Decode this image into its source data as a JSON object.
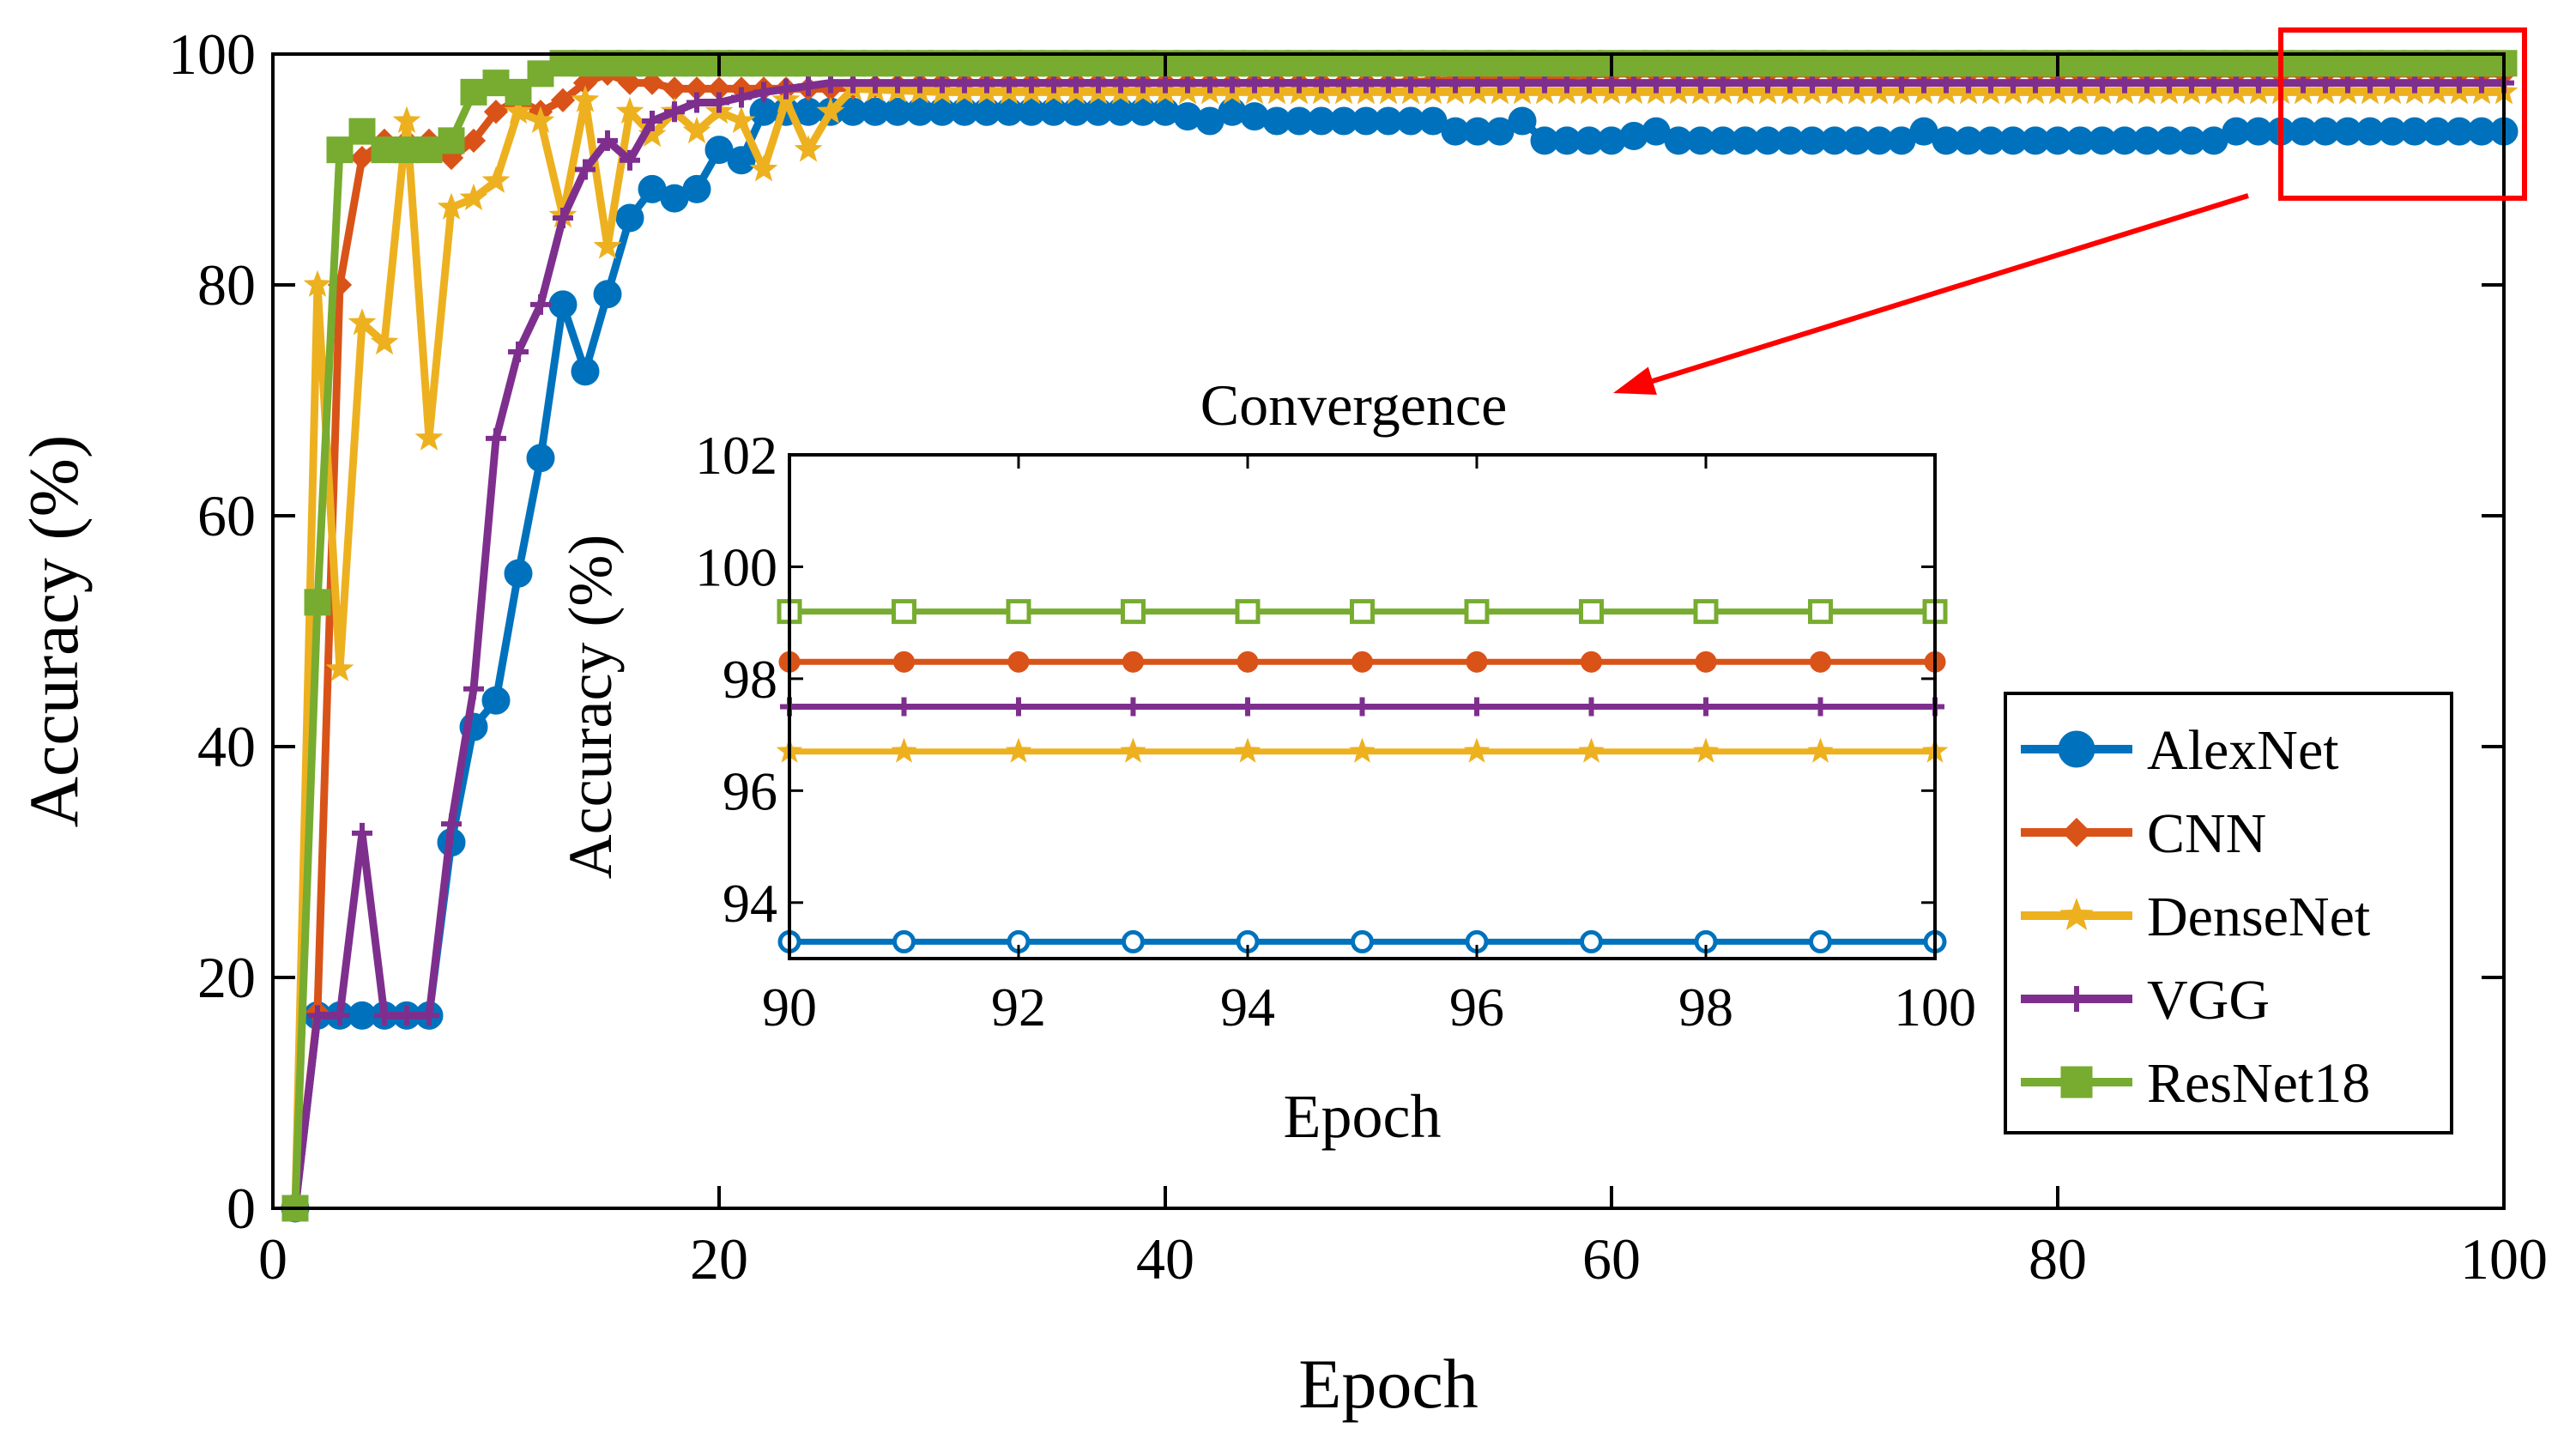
{
  "chart_data": [
    {
      "type": "line",
      "title": "",
      "xlabel": "Epoch",
      "ylabel": "Accuracy (%)",
      "xlim": [
        0,
        100
      ],
      "ylim": [
        0,
        100
      ],
      "xticks": [
        0,
        20,
        40,
        60,
        80,
        100
      ],
      "yticks": [
        0,
        20,
        40,
        60,
        80,
        100
      ],
      "grid": false,
      "legend_position": "bottom-right",
      "series": [
        {
          "name": "AlexNet",
          "color": "#0072BD",
          "marker": "circle-filled",
          "points": [
            [
              1,
              0
            ],
            [
              2,
              16.7
            ],
            [
              3,
              16.7
            ],
            [
              4,
              16.7
            ],
            [
              5,
              16.7
            ],
            [
              6,
              16.7
            ],
            [
              7,
              16.7
            ],
            [
              8,
              31.7
            ],
            [
              9,
              41.7
            ],
            [
              10,
              44
            ],
            [
              11,
              55
            ],
            [
              12,
              65
            ],
            [
              13,
              78.3
            ],
            [
              14,
              72.5
            ],
            [
              15,
              79.2
            ],
            [
              16,
              85.8
            ],
            [
              17,
              88.3
            ],
            [
              18,
              87.5
            ],
            [
              19,
              88.3
            ],
            [
              20,
              91.7
            ],
            [
              21,
              90.8
            ],
            [
              22,
              95
            ],
            [
              25,
              95
            ],
            [
              30,
              95
            ],
            [
              35,
              95
            ],
            [
              40,
              95
            ],
            [
              42,
              94.2
            ],
            [
              43,
              95
            ],
            [
              45,
              94.2
            ],
            [
              50,
              94.2
            ],
            [
              52,
              94.2
            ],
            [
              53,
              93.3
            ],
            [
              55,
              93.3
            ],
            [
              56,
              94.2
            ],
            [
              57,
              92.5
            ],
            [
              60,
              92.5
            ],
            [
              62,
              93.3
            ],
            [
              63,
              92.5
            ],
            [
              70,
              92.5
            ],
            [
              73,
              92.5
            ],
            [
              74,
              93.3
            ],
            [
              75,
              92.5
            ],
            [
              80,
              92.5
            ],
            [
              87,
              92.5
            ],
            [
              88,
              93.3
            ],
            [
              95,
              93.3
            ],
            [
              100,
              93.3
            ]
          ]
        },
        {
          "name": "CNN",
          "color": "#D95319",
          "marker": "diamond-filled",
          "points": [
            [
              1,
              0
            ],
            [
              2,
              17
            ],
            [
              3,
              80
            ],
            [
              4,
              91
            ],
            [
              5,
              92.5
            ],
            [
              6,
              92.5
            ],
            [
              7,
              92.5
            ],
            [
              8,
              91
            ],
            [
              9,
              92.5
            ],
            [
              10,
              95
            ],
            [
              11,
              96
            ],
            [
              12,
              95
            ],
            [
              13,
              96
            ],
            [
              14,
              97.5
            ],
            [
              15,
              98.3
            ],
            [
              16,
              97.5
            ],
            [
              17,
              97.5
            ],
            [
              18,
              97
            ],
            [
              19,
              97
            ],
            [
              20,
              97
            ],
            [
              25,
              97
            ],
            [
              30,
              97.5
            ],
            [
              40,
              97.5
            ],
            [
              50,
              97.5
            ],
            [
              60,
              98.3
            ],
            [
              70,
              98.3
            ],
            [
              80,
              98.3
            ],
            [
              90,
              98.3
            ],
            [
              100,
              98.3
            ]
          ]
        },
        {
          "name": "DenseNet",
          "color": "#EDB120",
          "marker": "star-filled",
          "points": [
            [
              1,
              0
            ],
            [
              2,
              80
            ],
            [
              3,
              46.7
            ],
            [
              4,
              76.7
            ],
            [
              5,
              75
            ],
            [
              6,
              94.2
            ],
            [
              7,
              66.7
            ],
            [
              8,
              86.7
            ],
            [
              9,
              87.5
            ],
            [
              10,
              89
            ],
            [
              11,
              95
            ],
            [
              12,
              94.2
            ],
            [
              13,
              86
            ],
            [
              14,
              96
            ],
            [
              15,
              83.3
            ],
            [
              16,
              95
            ],
            [
              17,
              93
            ],
            [
              18,
              95
            ],
            [
              19,
              93.3
            ],
            [
              20,
              95
            ],
            [
              21,
              94.2
            ],
            [
              22,
              90
            ],
            [
              23,
              96
            ],
            [
              24,
              91.7
            ],
            [
              25,
              95
            ],
            [
              26,
              97
            ],
            [
              30,
              96.7
            ],
            [
              40,
              96.7
            ],
            [
              50,
              96.7
            ],
            [
              60,
              96.7
            ],
            [
              70,
              96.7
            ],
            [
              80,
              96.7
            ],
            [
              90,
              96.7
            ],
            [
              100,
              96.7
            ]
          ]
        },
        {
          "name": "VGG",
          "color": "#7E2F8E",
          "marker": "plus",
          "points": [
            [
              1,
              0
            ],
            [
              2,
              16.7
            ],
            [
              3,
              16.7
            ],
            [
              4,
              32.5
            ],
            [
              5,
              16.7
            ],
            [
              6,
              16.7
            ],
            [
              7,
              16.7
            ],
            [
              8,
              33.3
            ],
            [
              9,
              45
            ],
            [
              10,
              66.7
            ],
            [
              11,
              74.2
            ],
            [
              12,
              78.3
            ],
            [
              13,
              85.8
            ],
            [
              14,
              90
            ],
            [
              15,
              92.5
            ],
            [
              16,
              90.8
            ],
            [
              17,
              94.2
            ],
            [
              18,
              95
            ],
            [
              19,
              95.8
            ],
            [
              20,
              95.8
            ],
            [
              22,
              96.7
            ],
            [
              25,
              97.5
            ],
            [
              30,
              97.5
            ],
            [
              40,
              97.5
            ],
            [
              50,
              97.5
            ],
            [
              60,
              97.5
            ],
            [
              70,
              97.5
            ],
            [
              80,
              97.5
            ],
            [
              90,
              97.5
            ],
            [
              100,
              97.5
            ]
          ]
        },
        {
          "name": "ResNet18",
          "color": "#77AC30",
          "marker": "square-filled",
          "points": [
            [
              1,
              0
            ],
            [
              2,
              52.5
            ],
            [
              3,
              91.7
            ],
            [
              4,
              93.3
            ],
            [
              5,
              91.7
            ],
            [
              6,
              91.7
            ],
            [
              7,
              91.7
            ],
            [
              8,
              92.5
            ],
            [
              9,
              96.7
            ],
            [
              10,
              97.5
            ],
            [
              11,
              96.7
            ],
            [
              12,
              98.3
            ],
            [
              13,
              99.2
            ],
            [
              20,
              99.2
            ],
            [
              30,
              99.2
            ],
            [
              40,
              99.2
            ],
            [
              50,
              99.2
            ],
            [
              60,
              99.2
            ],
            [
              70,
              99.2
            ],
            [
              80,
              99.2
            ],
            [
              90,
              99.2
            ],
            [
              100,
              99.2
            ]
          ]
        }
      ]
    },
    {
      "type": "line",
      "title": "Convergence",
      "xlabel": "Epoch",
      "ylabel": "Accuracy (%)",
      "xlim": [
        90,
        100
      ],
      "ylim": [
        93,
        102
      ],
      "xticks": [
        90,
        92,
        94,
        96,
        98,
        100
      ],
      "yticks": [
        94,
        96,
        98,
        100,
        102
      ],
      "grid": false,
      "series": [
        {
          "name": "AlexNet",
          "color": "#0072BD",
          "marker": "circle-open",
          "x": [
            90,
            91,
            92,
            93,
            94,
            95,
            96,
            97,
            98,
            99,
            100
          ],
          "values": [
            93.3,
            93.3,
            93.3,
            93.3,
            93.3,
            93.3,
            93.3,
            93.3,
            93.3,
            93.3,
            93.3
          ]
        },
        {
          "name": "CNN",
          "color": "#D95319",
          "marker": "circle-filled",
          "x": [
            90,
            91,
            92,
            93,
            94,
            95,
            96,
            97,
            98,
            99,
            100
          ],
          "values": [
            98.3,
            98.3,
            98.3,
            98.3,
            98.3,
            98.3,
            98.3,
            98.3,
            98.3,
            98.3,
            98.3
          ]
        },
        {
          "name": "DenseNet",
          "color": "#EDB120",
          "marker": "star-filled",
          "x": [
            90,
            91,
            92,
            93,
            94,
            95,
            96,
            97,
            98,
            99,
            100
          ],
          "values": [
            96.7,
            96.7,
            96.7,
            96.7,
            96.7,
            96.7,
            96.7,
            96.7,
            96.7,
            96.7,
            96.7
          ]
        },
        {
          "name": "VGG",
          "color": "#7E2F8E",
          "marker": "plus",
          "x": [
            90,
            91,
            92,
            93,
            94,
            95,
            96,
            97,
            98,
            99,
            100
          ],
          "values": [
            97.5,
            97.5,
            97.5,
            97.5,
            97.5,
            97.5,
            97.5,
            97.5,
            97.5,
            97.5,
            97.5
          ]
        },
        {
          "name": "ResNet18",
          "color": "#77AC30",
          "marker": "square-open",
          "x": [
            90,
            91,
            92,
            93,
            94,
            95,
            96,
            97,
            98,
            99,
            100
          ],
          "values": [
            99.2,
            99.2,
            99.2,
            99.2,
            99.2,
            99.2,
            99.2,
            99.2,
            99.2,
            99.2,
            99.2
          ]
        }
      ]
    }
  ],
  "zoom_box": {
    "x_range": [
      90,
      100
    ],
    "y_range": [
      89,
      100
    ],
    "color": "#FF0000"
  },
  "legend": {
    "entries": [
      "AlexNet",
      "CNN",
      "DenseNet",
      "VGG",
      "ResNet18"
    ]
  }
}
